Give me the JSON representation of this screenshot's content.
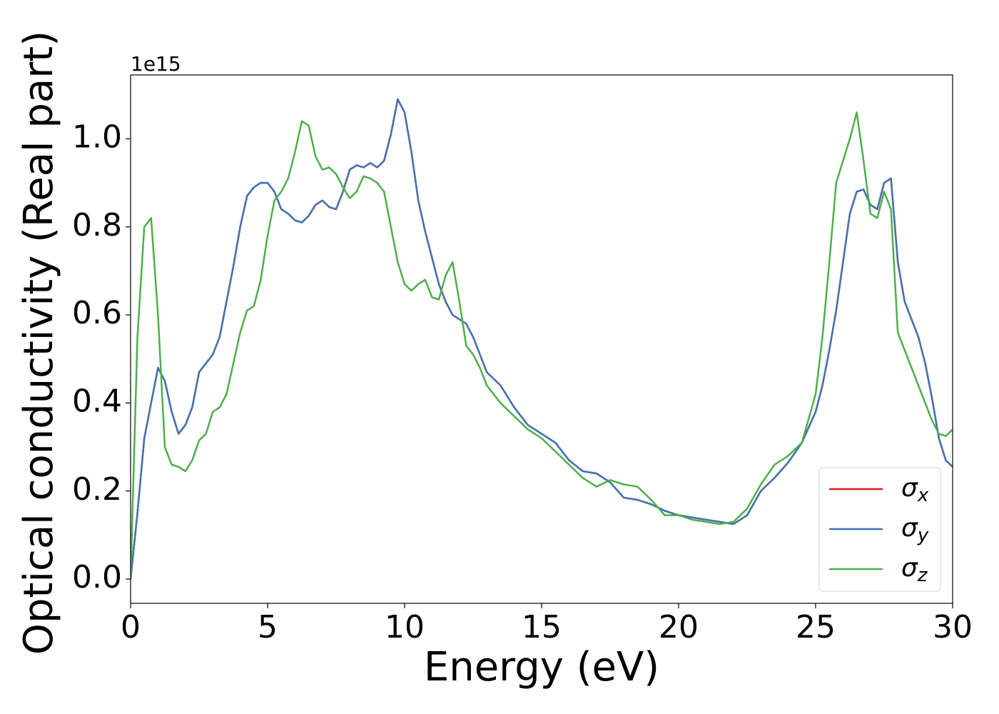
{
  "chart_data": {
    "type": "line",
    "xlabel": "Energy (eV)",
    "ylabel": "Optical conductivity (Real part)",
    "y_offset_label": "1e15",
    "x": [
      0,
      0.25,
      0.5,
      0.75,
      1,
      1.25,
      1.5,
      1.75,
      2,
      2.25,
      2.5,
      2.75,
      3,
      3.25,
      3.5,
      3.75,
      4,
      4.25,
      4.5,
      4.75,
      5,
      5.25,
      5.5,
      5.75,
      6,
      6.25,
      6.5,
      6.75,
      7,
      7.25,
      7.5,
      7.75,
      8,
      8.25,
      8.5,
      8.75,
      9,
      9.25,
      9.5,
      9.75,
      10,
      10.25,
      10.5,
      10.75,
      11,
      11.25,
      11.5,
      11.75,
      12,
      12.25,
      12.5,
      12.75,
      13,
      13.5,
      14,
      14.5,
      15,
      15.5,
      16,
      16.5,
      17,
      17.5,
      18,
      18.5,
      19,
      19.5,
      20,
      20.5,
      21,
      21.5,
      22,
      22.5,
      23,
      23.5,
      24,
      24.5,
      25,
      25.25,
      25.5,
      25.75,
      26,
      26.25,
      26.5,
      26.75,
      27,
      27.25,
      27.5,
      27.75,
      28,
      28.25,
      28.5,
      28.75,
      29,
      29.25,
      29.5,
      29.75,
      30
    ],
    "series": [
      {
        "name": "σx",
        "color": "#e41a1c",
        "values": [
          0,
          0.15,
          0.32,
          0.4,
          0.48,
          0.45,
          0.38,
          0.33,
          0.35,
          0.39,
          0.47,
          0.49,
          0.51,
          0.55,
          0.63,
          0.71,
          0.8,
          0.87,
          0.89,
          0.9,
          0.9,
          0.88,
          0.84,
          0.83,
          0.815,
          0.81,
          0.825,
          0.85,
          0.86,
          0.845,
          0.84,
          0.88,
          0.93,
          0.94,
          0.935,
          0.945,
          0.935,
          0.95,
          1.01,
          1.09,
          1.06,
          0.97,
          0.86,
          0.79,
          0.73,
          0.67,
          0.63,
          0.6,
          0.59,
          0.58,
          0.55,
          0.51,
          0.47,
          0.44,
          0.39,
          0.35,
          0.33,
          0.31,
          0.27,
          0.245,
          0.24,
          0.22,
          0.185,
          0.18,
          0.17,
          0.155,
          0.145,
          0.14,
          0.135,
          0.13,
          0.125,
          0.145,
          0.2,
          0.23,
          0.265,
          0.31,
          0.38,
          0.44,
          0.52,
          0.61,
          0.72,
          0.83,
          0.88,
          0.885,
          0.85,
          0.84,
          0.9,
          0.91,
          0.72,
          0.63,
          0.59,
          0.55,
          0.49,
          0.41,
          0.32,
          0.27,
          0.255
        ]
      },
      {
        "name": "σy",
        "color": "#3f76b4",
        "values": [
          0,
          0.15,
          0.32,
          0.4,
          0.48,
          0.45,
          0.38,
          0.33,
          0.35,
          0.39,
          0.47,
          0.49,
          0.51,
          0.55,
          0.63,
          0.71,
          0.8,
          0.87,
          0.89,
          0.9,
          0.9,
          0.88,
          0.84,
          0.83,
          0.815,
          0.81,
          0.825,
          0.85,
          0.86,
          0.845,
          0.84,
          0.88,
          0.93,
          0.94,
          0.935,
          0.945,
          0.935,
          0.95,
          1.01,
          1.09,
          1.06,
          0.97,
          0.86,
          0.79,
          0.73,
          0.67,
          0.63,
          0.6,
          0.59,
          0.58,
          0.55,
          0.51,
          0.47,
          0.44,
          0.39,
          0.35,
          0.33,
          0.31,
          0.27,
          0.245,
          0.24,
          0.22,
          0.185,
          0.18,
          0.17,
          0.155,
          0.145,
          0.14,
          0.135,
          0.13,
          0.125,
          0.145,
          0.2,
          0.23,
          0.265,
          0.31,
          0.38,
          0.44,
          0.52,
          0.61,
          0.72,
          0.83,
          0.88,
          0.885,
          0.85,
          0.84,
          0.9,
          0.91,
          0.72,
          0.63,
          0.59,
          0.55,
          0.49,
          0.41,
          0.32,
          0.27,
          0.255
        ]
      },
      {
        "name": "σz",
        "color": "#4daf4a",
        "values": [
          0,
          0.55,
          0.8,
          0.82,
          0.6,
          0.3,
          0.26,
          0.255,
          0.245,
          0.27,
          0.315,
          0.33,
          0.38,
          0.39,
          0.42,
          0.49,
          0.56,
          0.61,
          0.62,
          0.68,
          0.78,
          0.86,
          0.88,
          0.91,
          0.97,
          1.04,
          1.03,
          0.96,
          0.93,
          0.935,
          0.92,
          0.89,
          0.865,
          0.88,
          0.915,
          0.91,
          0.9,
          0.88,
          0.8,
          0.72,
          0.67,
          0.655,
          0.67,
          0.68,
          0.64,
          0.635,
          0.69,
          0.72,
          0.63,
          0.53,
          0.51,
          0.48,
          0.44,
          0.4,
          0.37,
          0.34,
          0.32,
          0.29,
          0.26,
          0.23,
          0.21,
          0.225,
          0.215,
          0.21,
          0.18,
          0.145,
          0.145,
          0.135,
          0.13,
          0.125,
          0.13,
          0.16,
          0.215,
          0.26,
          0.28,
          0.31,
          0.42,
          0.55,
          0.72,
          0.9,
          0.95,
          1.0,
          1.06,
          0.95,
          0.83,
          0.82,
          0.88,
          0.84,
          0.56,
          0.52,
          0.48,
          0.44,
          0.4,
          0.36,
          0.33,
          0.325,
          0.34
        ]
      }
    ],
    "xlim": [
      0,
      30
    ],
    "xticks": [
      0,
      5,
      10,
      15,
      20,
      25,
      30
    ],
    "ylim": [
      -0.055,
      1.145
    ],
    "yticks": [
      {
        "value": 0,
        "label": "0.0"
      },
      0.2,
      0.4,
      0.6,
      0.8,
      {
        "value": 1,
        "label": "1.0"
      }
    ],
    "grid": false,
    "legend": "lower right"
  }
}
